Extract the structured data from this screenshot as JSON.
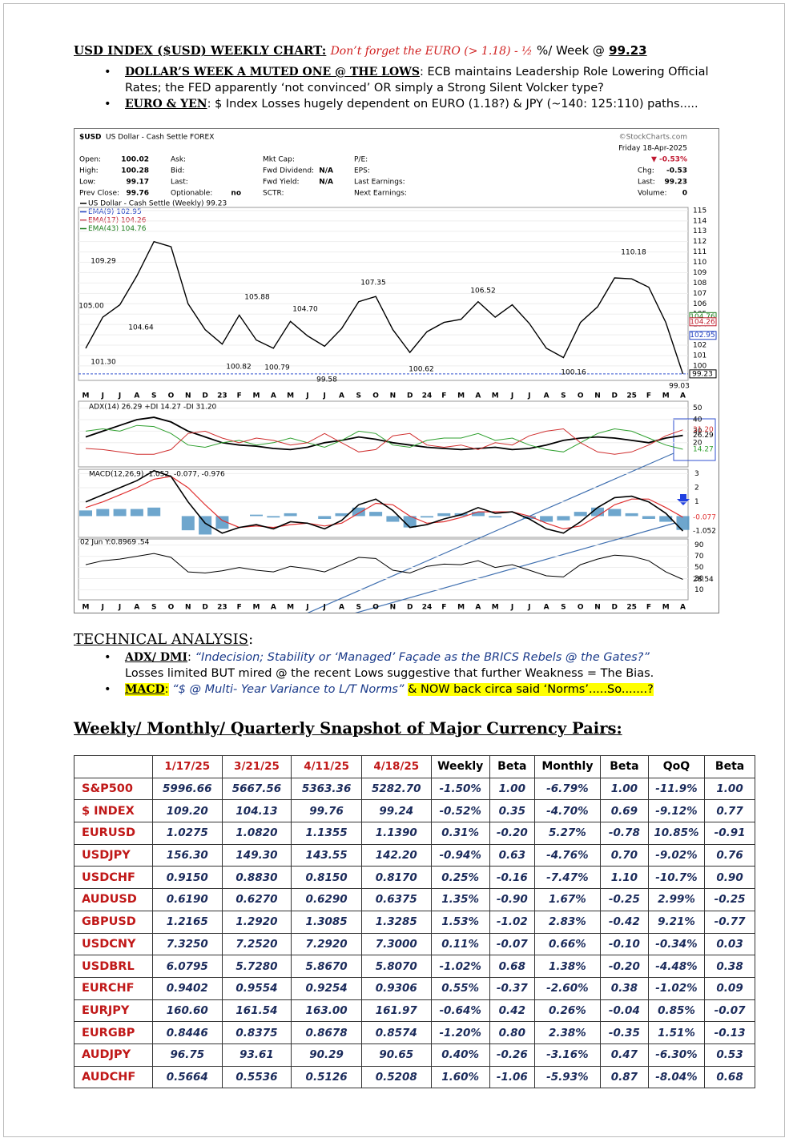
{
  "header": {
    "title": "USD INDEX ($USD) WEEKLY CHART:",
    "subtitle": "Don’t forget the EURO (> 1.18) - ½",
    "subtitle_tail": "%/ Week @",
    "price": "99.23"
  },
  "bullets": [
    {
      "head": "DOLLAR’S WEEK A MUTED ONE @ THE LOWS",
      "text": ":  ECB maintains Leadership Role Lowering Official Rates; the FED apparently ‘not convinced’ OR simply a Strong Silent Volcker type?"
    },
    {
      "head": "EURO & YEN",
      "text": ": $ Index Losses hugely dependent on EURO (1.18?) & JPY (~140: 125:110) paths....."
    }
  ],
  "stock_chart": {
    "symbol": "$USD",
    "name": "US Dollar - Cash Settle FOREX",
    "source": "©StockCharts.com",
    "date": "Friday  18-Apr-2025",
    "change_pct": "▼ -0.53%",
    "quote": [
      {
        "label": "Open:",
        "value": "100.02"
      },
      {
        "label": "High:",
        "value": "100.28"
      },
      {
        "label": "Low:",
        "value": "99.17"
      },
      {
        "label": "Prev Close:",
        "value": "99.76"
      }
    ],
    "market": [
      {
        "label": "Ask:"
      },
      {
        "label": "Bid:"
      },
      {
        "label": "Last:"
      },
      {
        "label": "Optionable:",
        "value": "no"
      }
    ],
    "fundamentals": [
      {
        "label": "Mkt Cap:"
      },
      {
        "label": "Fwd Dividend:",
        "value": "N/A"
      },
      {
        "label": "Fwd Yield:",
        "value": "N/A"
      },
      {
        "label": "SCTR:"
      }
    ],
    "earnings": [
      {
        "label": "P/E:"
      },
      {
        "label": "EPS:"
      },
      {
        "label": "Last Earnings:"
      },
      {
        "label": "Next Earnings:"
      }
    ],
    "today": [
      {
        "label": "Chg:",
        "value": "-0.53"
      },
      {
        "label": "Last:",
        "value": "99.23"
      },
      {
        "label": "Volume:",
        "value": "0"
      }
    ],
    "legend": [
      {
        "text": "US Dollar - Cash Settle (Weekly) 99.23",
        "color": "#000000"
      },
      {
        "text": "EMA(9) 102.95",
        "color": "#2040c0"
      },
      {
        "text": "EMA(17) 104.26",
        "color": "#c02030"
      },
      {
        "text": "EMA(43) 104.76",
        "color": "#208020"
      }
    ],
    "months": [
      "M",
      "J",
      "J",
      "A",
      "S",
      "O",
      "N",
      "D",
      "23",
      "F",
      "M",
      "A",
      "M",
      "J",
      "J",
      "A",
      "S",
      "O",
      "N",
      "D",
      "24",
      "F",
      "M",
      "A",
      "M",
      "J",
      "J",
      "A",
      "S",
      "O",
      "N",
      "D",
      "25",
      "F",
      "M",
      "A"
    ],
    "price": {
      "ylim": [
        98.6,
        115.3
      ],
      "yticks": [
        100,
        101,
        102,
        103,
        104,
        105,
        106,
        107,
        108,
        109,
        110,
        111,
        112,
        113,
        114,
        115
      ],
      "color": "#000000",
      "closes": [
        101.7,
        104.7,
        105.9,
        108.7,
        112,
        111.5,
        106,
        103.5,
        102.1,
        104.9,
        102.5,
        101.7,
        104.3,
        102.9,
        101.9,
        103.6,
        106.2,
        106.7,
        103.5,
        101.3,
        103.3,
        104.2,
        104.5,
        106.2,
        104.7,
        105.9,
        104.1,
        101.7,
        100.8,
        104.2,
        105.7,
        108.5,
        108.4,
        107.6,
        104.2,
        99.23
      ],
      "annotations": [
        "109.29",
        "105.00",
        "104.64",
        "101.30",
        "105.88",
        "104.70",
        "100.82",
        "100.79",
        "99.58",
        "107.35",
        "100.62",
        "106.52",
        "100.16",
        "110.18",
        "99.03"
      ],
      "side_labels": [
        {
          "value": 104.76,
          "label": "104.76",
          "color": "#208020"
        },
        {
          "value": 104.26,
          "label": "104.26",
          "color": "#c02030"
        },
        {
          "value": 102.95,
          "label": "102.95",
          "color": "#2040c0"
        },
        {
          "value": 99.23,
          "label": "99.23",
          "color": "#000000"
        }
      ]
    },
    "adx": {
      "legend": "ADX(14) 26.29 +DI 14.27 -DI 31.20",
      "ylim": [
        -1,
        56
      ],
      "yticks": [
        20,
        30,
        40,
        50
      ],
      "series": [
        {
          "name": "ADX",
          "color": "#000000",
          "label": "26.29",
          "values": [
            25,
            30,
            35,
            40,
            42,
            38,
            30,
            25,
            20,
            18,
            17,
            15,
            14,
            16,
            20,
            22,
            25,
            23,
            20,
            18,
            16,
            15,
            14,
            15,
            16,
            14,
            15,
            18,
            22,
            24,
            25,
            24,
            22,
            20,
            24,
            26.29
          ]
        },
        {
          "name": "+DI",
          "color": "#30a030",
          "label": "14.27",
          "values": [
            30,
            32,
            30,
            35,
            34,
            28,
            18,
            16,
            20,
            22,
            18,
            20,
            24,
            20,
            16,
            22,
            30,
            28,
            18,
            16,
            22,
            24,
            24,
            28,
            22,
            24,
            18,
            14,
            12,
            20,
            28,
            32,
            30,
            24,
            18,
            14.27
          ]
        },
        {
          "name": "-DI",
          "color": "#d03030",
          "label": "31.20",
          "values": [
            15,
            14,
            12,
            10,
            10,
            14,
            28,
            30,
            24,
            20,
            24,
            22,
            18,
            20,
            28,
            20,
            12,
            14,
            26,
            28,
            18,
            16,
            18,
            14,
            20,
            18,
            26,
            30,
            32,
            20,
            12,
            10,
            12,
            18,
            26,
            31.2
          ]
        }
      ]
    },
    "macd": {
      "legend": "MACD(12,26,9) -1.052, -0.077, -0.976",
      "ylim": [
        -1.5,
        3.3
      ],
      "yticks": [
        1,
        2,
        3
      ],
      "macd": {
        "color": "#000000",
        "label": "-1.052",
        "values": [
          1,
          1.5,
          2,
          2.5,
          3.2,
          2.8,
          1,
          -0.5,
          -1.2,
          -0.8,
          -0.6,
          -0.9,
          -0.4,
          -0.5,
          -0.9,
          -0.3,
          0.8,
          1.2,
          0.4,
          -0.8,
          -0.6,
          -0.2,
          0.1,
          0.6,
          0.2,
          0.3,
          -0.2,
          -0.9,
          -1.2,
          -0.4,
          0.6,
          1.3,
          1.4,
          1,
          0.2,
          -1.052
        ]
      },
      "signal": {
        "color": "#e03030",
        "label": "-0.077",
        "values": [
          0.6,
          1,
          1.5,
          2,
          2.6,
          2.8,
          2,
          0.8,
          -0.3,
          -0.8,
          -0.7,
          -0.8,
          -0.6,
          -0.5,
          -0.7,
          -0.5,
          0.2,
          0.9,
          0.8,
          0,
          -0.5,
          -0.4,
          -0.1,
          0.3,
          0.3,
          0.3,
          0,
          -0.5,
          -0.9,
          -0.7,
          0,
          0.8,
          1.2,
          1.2,
          0.6,
          -0.077
        ]
      },
      "histogram": {
        "color": "#4a90c0",
        "values": [
          0.4,
          0.5,
          0.5,
          0.5,
          0.6,
          0,
          -1,
          -1.3,
          -0.9,
          0,
          0.1,
          -0.1,
          0.2,
          0,
          -0.2,
          0.2,
          0.6,
          0.3,
          -0.4,
          -0.8,
          -0.1,
          0.2,
          0.2,
          0.3,
          -0.1,
          0,
          -0.2,
          -0.4,
          -0.3,
          0.3,
          0.6,
          0.5,
          0.2,
          -0.2,
          -0.4,
          -0.976
        ]
      }
    },
    "rsi": {
      "legend": "02 Jun Y:0.8969",
      "legend_tail": ".54",
      "ylim": [
        -8,
        101
      ],
      "yticks": [
        10,
        30,
        50,
        70,
        90
      ],
      "color": "#000000",
      "label": "28.54",
      "values": [
        55,
        62,
        65,
        70,
        75,
        68,
        42,
        40,
        44,
        50,
        45,
        42,
        52,
        48,
        42,
        55,
        68,
        66,
        45,
        40,
        52,
        56,
        55,
        62,
        50,
        55,
        45,
        35,
        33,
        55,
        65,
        72,
        70,
        62,
        42,
        28.54
      ]
    }
  },
  "technical": {
    "title": "TECHNICAL ANALYSIS",
    "colon": ":",
    "bullets": [
      {
        "head": "ADX/ DMI",
        "sep": ":",
        "quote": "“Indecision; Stability or ‘Managed’ Façade as the BRICS Rebels @ the Gates?”",
        "text": "Losses limited BUT mired @ the recent Lows suggestive that further Weakness = The Bias."
      },
      {
        "head": "MACD",
        "sep": ":",
        "quote": "“$ @ Multi- Year Variance to L/T Norms”",
        "text": "& NOW back circa said ‘Norms’.....So.......?"
      }
    ]
  },
  "snapshot": {
    "title": "Weekly/ Monthly/ Quarterly Snapshot of Major Currency Pairs:",
    "columns": [
      "1/17/25",
      "3/21/25",
      "4/11/25",
      "4/18/25",
      "Weekly",
      "Beta",
      "Monthly",
      "Beta",
      "QoQ",
      "Beta"
    ],
    "rows": [
      {
        "name": "S&P500",
        "values": [
          "5996.66",
          "5667.56",
          "5363.36",
          "5282.70",
          "-1.50%",
          "1.00",
          "-6.79%",
          "1.00",
          "-11.9%",
          "1.00"
        ]
      },
      {
        "name": "$ INDEX",
        "values": [
          "109.20",
          "104.13",
          "99.76",
          "99.24",
          "-0.52%",
          "0.35",
          "-4.70%",
          "0.69",
          "-9.12%",
          "0.77"
        ]
      },
      {
        "name": "EURUSD",
        "values": [
          "1.0275",
          "1.0820",
          "1.1355",
          "1.1390",
          "0.31%",
          "-0.20",
          "5.27%",
          "-0.78",
          "10.85%",
          "-0.91"
        ]
      },
      {
        "name": "USDJPY",
        "values": [
          "156.30",
          "149.30",
          "143.55",
          "142.20",
          "-0.94%",
          "0.63",
          "-4.76%",
          "0.70",
          "-9.02%",
          "0.76"
        ]
      },
      {
        "name": "USDCHF",
        "values": [
          "0.9150",
          "0.8830",
          "0.8150",
          "0.8170",
          "0.25%",
          "-0.16",
          "-7.47%",
          "1.10",
          "-10.7%",
          "0.90"
        ]
      },
      {
        "name": "AUDUSD",
        "values": [
          "0.6190",
          "0.6270",
          "0.6290",
          "0.6375",
          "1.35%",
          "-0.90",
          "1.67%",
          "-0.25",
          "2.99%",
          "-0.25"
        ]
      },
      {
        "name": "GBPUSD",
        "values": [
          "1.2165",
          "1.2920",
          "1.3085",
          "1.3285",
          "1.53%",
          "-1.02",
          "2.83%",
          "-0.42",
          "9.21%",
          "-0.77"
        ]
      },
      {
        "name": "USDCNY",
        "values": [
          "7.3250",
          "7.2520",
          "7.2920",
          "7.3000",
          "0.11%",
          "-0.07",
          "0.66%",
          "-0.10",
          "-0.34%",
          "0.03"
        ]
      },
      {
        "name": "USDBRL",
        "values": [
          "6.0795",
          "5.7280",
          "5.8670",
          "5.8070",
          "-1.02%",
          "0.68",
          "1.38%",
          "-0.20",
          "-4.48%",
          "0.38"
        ]
      },
      {
        "name": "EURCHF",
        "values": [
          "0.9402",
          "0.9554",
          "0.9254",
          "0.9306",
          "0.55%",
          "-0.37",
          "-2.60%",
          "0.38",
          "-1.02%",
          "0.09"
        ]
      },
      {
        "name": "EURJPY",
        "values": [
          "160.60",
          "161.54",
          "163.00",
          "161.97",
          "-0.64%",
          "0.42",
          "0.26%",
          "-0.04",
          "0.85%",
          "-0.07"
        ]
      },
      {
        "name": "EURGBP",
        "values": [
          "0.8446",
          "0.8375",
          "0.8678",
          "0.8574",
          "-1.20%",
          "0.80",
          "2.38%",
          "-0.35",
          "1.51%",
          "-0.13"
        ]
      },
      {
        "name": "AUDJPY",
        "values": [
          "96.75",
          "93.61",
          "90.29",
          "90.65",
          "0.40%",
          "-0.26",
          "-3.16%",
          "0.47",
          "-6.30%",
          "0.53"
        ]
      },
      {
        "name": "AUDCHF",
        "values": [
          "0.5664",
          "0.5536",
          "0.5126",
          "0.5208",
          "1.60%",
          "-1.06",
          "-5.93%",
          "0.87",
          "-8.04%",
          "0.68"
        ]
      }
    ]
  }
}
